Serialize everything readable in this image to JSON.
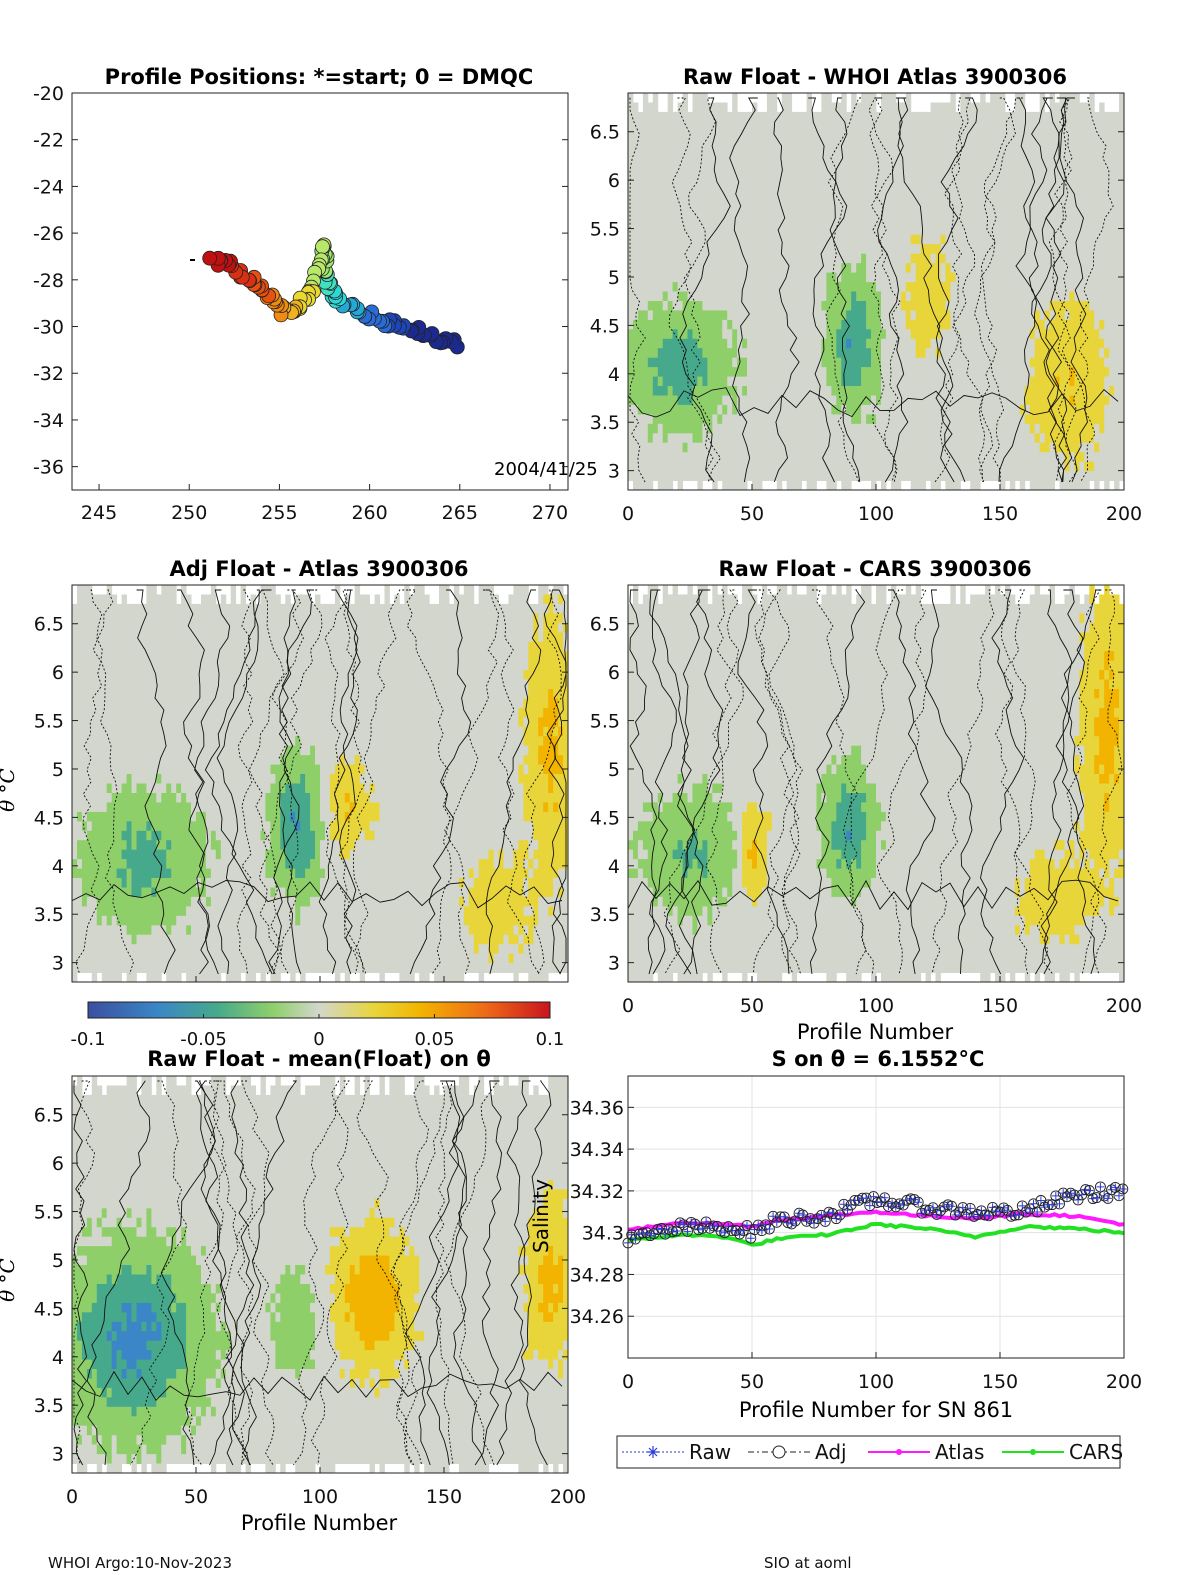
{
  "panel_map": {
    "title": "Profile Positions: *=start; 0 = DMQC",
    "date_label": "2004/41/25",
    "xticks": [
      "245",
      "250",
      "255",
      "260",
      "265",
      "270"
    ],
    "yticks": [
      "-20",
      "-22",
      "-24",
      "-26",
      "-28",
      "-30",
      "-32",
      "-34",
      "-36"
    ]
  },
  "panel_raw_atlas": {
    "title": "Raw Float - WHOI Atlas  3900306"
  },
  "panel_adj_atlas": {
    "title": "Adj Float - Atlas  3900306",
    "ylabel": "θ °C"
  },
  "panel_raw_cars": {
    "title": "Raw Float - CARS  3900306",
    "xlabel": "Profile Number"
  },
  "panel_raw_mean": {
    "title": "Raw Float - mean(Float) on θ",
    "ylabel": "θ °C",
    "xlabel": "Profile Number"
  },
  "panel_salinity": {
    "title": "S on θ = 6.1552°C",
    "ylabel": "Salinity",
    "xlabel": "Profile Number for SN 861"
  },
  "theta_yticks": [
    "6.5",
    "6",
    "5.5",
    "5",
    "4.5",
    "4",
    "3.5",
    "3"
  ],
  "profile_xticks": [
    "0",
    "50",
    "100",
    "150",
    "200"
  ],
  "colorbar": {
    "ticks": [
      "-0.1",
      "-0.05",
      "0",
      "0.05",
      "0.1"
    ],
    "colors": [
      "#3b4fa0",
      "#3a86c6",
      "#47a98b",
      "#8fcf6a",
      "#d2d6cc",
      "#e8d53a",
      "#f2b400",
      "#ee6a18",
      "#c9141d"
    ]
  },
  "legend": {
    "items": [
      {
        "label": "Raw",
        "color": "#2b39d6"
      },
      {
        "label": "Adj",
        "color": "#222222"
      },
      {
        "label": "Atlas",
        "color": "#ff19ff"
      },
      {
        "label": "CARS",
        "color": "#22e022"
      }
    ]
  },
  "footer": {
    "left": "WHOI Argo:10-Nov-2023",
    "right": "SIO at aoml"
  },
  "chart_data": [
    {
      "type": "scatter",
      "title": "Profile Positions: *=start; 0 = DMQC",
      "xlim": [
        243.5,
        271
      ],
      "ylim": [
        -37,
        -20
      ],
      "track_lon": [
        264.8,
        263.5,
        262.0,
        260.8,
        259.5,
        258.3,
        257.8,
        257.6,
        257.4,
        256.8,
        256.0,
        255.2,
        254.3,
        253.3,
        252.2,
        251.2
      ],
      "track_lat": [
        -30.8,
        -30.5,
        -30.0,
        -29.8,
        -29.3,
        -29.0,
        -28.4,
        -27.6,
        -26.5,
        -28.5,
        -29.2,
        -29.4,
        -28.5,
        -28.0,
        -27.4,
        -27.1
      ]
    },
    {
      "type": "heatmap",
      "title": "Raw Float - WHOI Atlas  3900306",
      "x_range": [
        0,
        200
      ],
      "y_range": [
        2.8,
        6.9
      ],
      "color_range": [
        -0.1,
        0.1
      ]
    },
    {
      "type": "heatmap",
      "title": "Adj Float - Atlas  3900306",
      "x_range": [
        0,
        200
      ],
      "y_range": [
        2.8,
        6.9
      ],
      "color_range": [
        -0.1,
        0.1
      ]
    },
    {
      "type": "heatmap",
      "title": "Raw Float - CARS  3900306",
      "x_range": [
        0,
        200
      ],
      "y_range": [
        2.8,
        6.9
      ],
      "color_range": [
        -0.1,
        0.1
      ]
    },
    {
      "type": "heatmap",
      "title": "Raw Float - mean(Float) on θ",
      "x_range": [
        0,
        200
      ],
      "y_range": [
        2.8,
        6.9
      ],
      "color_range": [
        -0.1,
        0.1
      ]
    },
    {
      "type": "line",
      "title": "S on θ = 6.1552°C",
      "xlabel": "Profile Number for SN 861",
      "ylabel": "Salinity",
      "xlim": [
        0,
        200
      ],
      "ylim": [
        34.24,
        34.375
      ],
      "yticks": [
        34.26,
        34.28,
        34.3,
        34.32,
        34.34,
        34.36
      ],
      "x": [
        0,
        20,
        40,
        50,
        60,
        80,
        100,
        120,
        140,
        160,
        180,
        200
      ],
      "series": [
        {
          "name": "Raw",
          "values": [
            34.296,
            34.302,
            34.303,
            34.3,
            34.306,
            34.308,
            34.316,
            34.312,
            34.31,
            34.31,
            34.318,
            34.32
          ]
        },
        {
          "name": "Adj",
          "values": [
            34.296,
            34.302,
            34.303,
            34.3,
            34.306,
            34.308,
            34.316,
            34.312,
            34.31,
            34.31,
            34.318,
            34.32
          ]
        },
        {
          "name": "Atlas",
          "values": [
            34.301,
            34.305,
            34.304,
            34.303,
            34.306,
            34.308,
            34.31,
            34.308,
            34.307,
            34.309,
            34.308,
            34.304
          ]
        },
        {
          "name": "CARS",
          "values": [
            34.296,
            34.299,
            34.298,
            34.294,
            34.297,
            34.299,
            34.304,
            34.302,
            34.298,
            34.303,
            34.302,
            34.3
          ]
        }
      ]
    }
  ]
}
